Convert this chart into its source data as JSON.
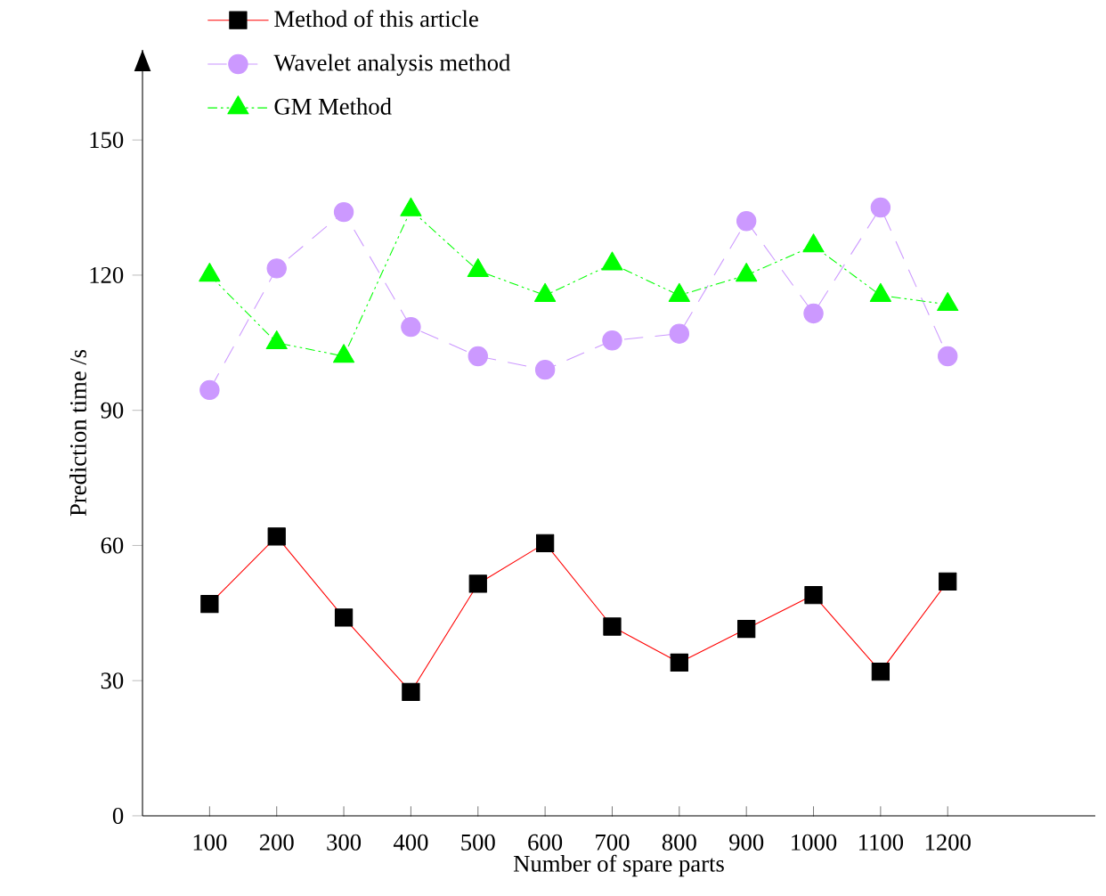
{
  "chart_data": {
    "type": "line",
    "xlabel": "Number of spare parts",
    "ylabel": "Prediction time /s",
    "categories": [
      "100",
      "200",
      "300",
      "400",
      "500",
      "600",
      "700",
      "800",
      "900",
      "1000",
      "1100",
      "1200"
    ],
    "series": [
      {
        "name": "Method of this article",
        "color": "#ff0000",
        "marker": "square",
        "line_style": "solid",
        "values": [
          47,
          62,
          44,
          27.5,
          51.5,
          60.5,
          42,
          34,
          41.5,
          49,
          32,
          52
        ]
      },
      {
        "name": "Wavelet analysis method",
        "color": "#cc99ff",
        "marker": "circle",
        "line_style": "dashed",
        "values": [
          94.5,
          121.5,
          134,
          108.5,
          102,
          99,
          105.5,
          107,
          132,
          111.5,
          135,
          102
        ]
      },
      {
        "name": "GM Method",
        "color": "#00ff00",
        "marker": "triangle",
        "line_style": "dashdotdot",
        "values": [
          120,
          105,
          102,
          134.5,
          121,
          115.5,
          122.5,
          115.5,
          120,
          126.5,
          115.5,
          113.5
        ]
      }
    ],
    "ylim": [
      0,
      170
    ],
    "yticks": [
      0,
      30,
      60,
      90,
      120,
      150
    ],
    "grid": false,
    "legend": "top left"
  }
}
